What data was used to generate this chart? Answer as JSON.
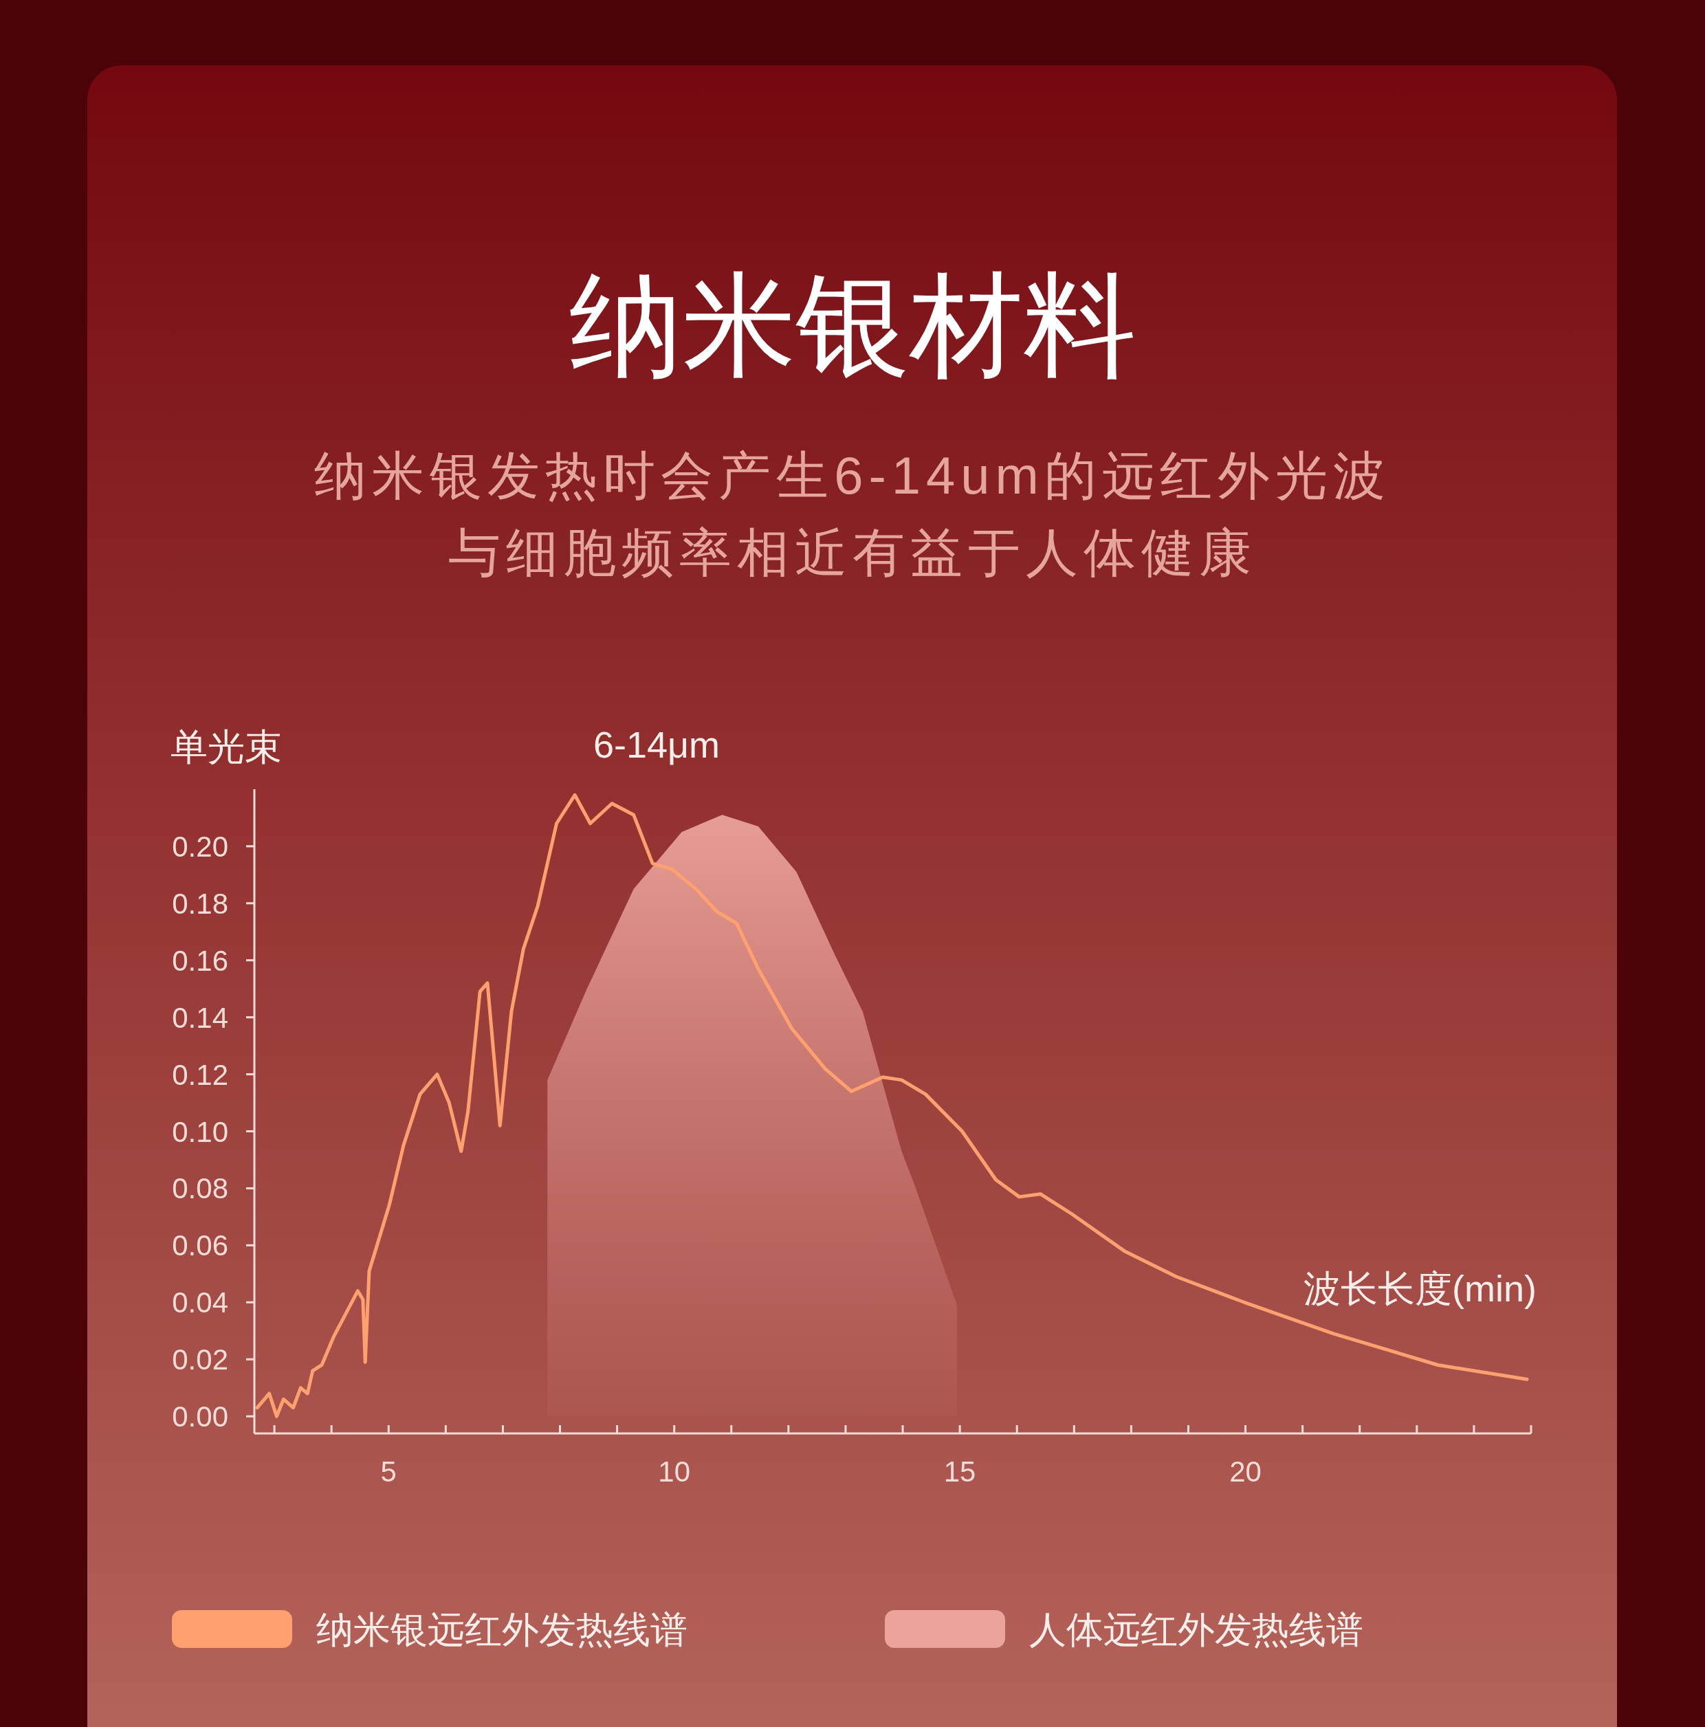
{
  "chart_data": {
    "type": "line",
    "title": "纳米银材料",
    "subtitle": "纳米银发热时会产生6-14um的远红外光波与细胞频率相近有益于人体健康",
    "xlabel": "波长长度(min)",
    "ylabel": "单光束",
    "annotations": [
      "6-14μm"
    ],
    "legend": "bottom",
    "xlim": [
      2.65,
      25
    ],
    "ylim": [
      -0.006,
      0.22
    ],
    "xticks": [
      {
        "value": 3,
        "label": null
      },
      {
        "value": 4,
        "label": null
      },
      5,
      {
        "value": 6,
        "label": null
      },
      {
        "value": 7,
        "label": null
      },
      {
        "value": 8,
        "label": null
      },
      {
        "value": 9,
        "label": null
      },
      10,
      {
        "value": 11,
        "label": null
      },
      {
        "value": 12,
        "label": null
      },
      {
        "value": 13,
        "label": null
      },
      {
        "value": 14,
        "label": null
      },
      15,
      {
        "value": 16,
        "label": null
      },
      {
        "value": 17,
        "label": null
      },
      {
        "value": 18,
        "label": null
      },
      {
        "value": 19,
        "label": null
      },
      20,
      {
        "value": 21,
        "label": null
      },
      {
        "value": 22,
        "label": null
      },
      {
        "value": 23,
        "label": null
      },
      {
        "value": 24,
        "label": null
      },
      {
        "value": 25,
        "label": null
      }
    ],
    "yticks": [
      {
        "value": 0,
        "label": "0.00"
      },
      {
        "value": 0.02,
        "label": "0.02"
      },
      {
        "value": 0.04,
        "label": "0.04"
      },
      {
        "value": 0.06,
        "label": "0.06"
      },
      {
        "value": 0.08,
        "label": "0.08"
      },
      {
        "value": 0.1,
        "label": "0.10"
      },
      {
        "value": 0.12,
        "label": "0.12"
      },
      {
        "value": 0.14,
        "label": "0.14"
      },
      {
        "value": 0.16,
        "label": "0.16"
      },
      {
        "value": 0.18,
        "label": "0.18"
      },
      {
        "value": 0.2,
        "label": "0.20"
      }
    ],
    "series": [
      {
        "name": "人体远红外发热线谱",
        "type": "area",
        "color": "#eba39a",
        "x": [
          7.78,
          8.45,
          9.29,
          10.13,
          10.84,
          11.47,
          12.14,
          12.81,
          13.3,
          13.98,
          14.21,
          14.95
        ],
        "values": [
          0.118,
          0.149,
          0.185,
          0.205,
          0.211,
          0.207,
          0.191,
          0.162,
          0.142,
          0.093,
          0.081,
          0.039
        ]
      },
      {
        "name": "纳米银远红外发热线谱",
        "type": "line",
        "color": "#ffa070",
        "x": [
          2.7,
          2.91,
          3.04,
          3.16,
          3.33,
          3.46,
          3.58,
          3.67,
          3.83,
          4.04,
          4.25,
          4.46,
          4.55,
          4.59,
          4.66,
          5.01,
          5.26,
          5.55,
          5.85,
          6.06,
          6.27,
          6.39,
          6.6,
          6.73,
          6.95,
          7.15,
          7.36,
          7.61,
          7.94,
          8.26,
          8.53,
          8.91,
          9.29,
          9.62,
          9.96,
          10.38,
          10.75,
          11.09,
          11.47,
          12.06,
          12.64,
          13.1,
          13.65,
          13.98,
          14.4,
          15.04,
          15.63,
          16.04,
          16.41,
          16.96,
          17.88,
          18.79,
          19.98,
          21.54,
          23.37,
          24.93
        ],
        "values": [
          0.003,
          0.008,
          0.0,
          0.006,
          0.003,
          0.01,
          0.008,
          0.016,
          0.018,
          0.028,
          0.036,
          0.044,
          0.041,
          0.019,
          0.051,
          0.074,
          0.095,
          0.113,
          0.12,
          0.11,
          0.093,
          0.107,
          0.149,
          0.152,
          0.102,
          0.142,
          0.164,
          0.179,
          0.208,
          0.218,
          0.208,
          0.215,
          0.211,
          0.194,
          0.192,
          0.185,
          0.177,
          0.173,
          0.157,
          0.136,
          0.122,
          0.114,
          0.119,
          0.118,
          0.113,
          0.1,
          0.083,
          0.077,
          0.078,
          0.071,
          0.058,
          0.049,
          0.04,
          0.029,
          0.018,
          0.013
        ]
      }
    ]
  }
}
